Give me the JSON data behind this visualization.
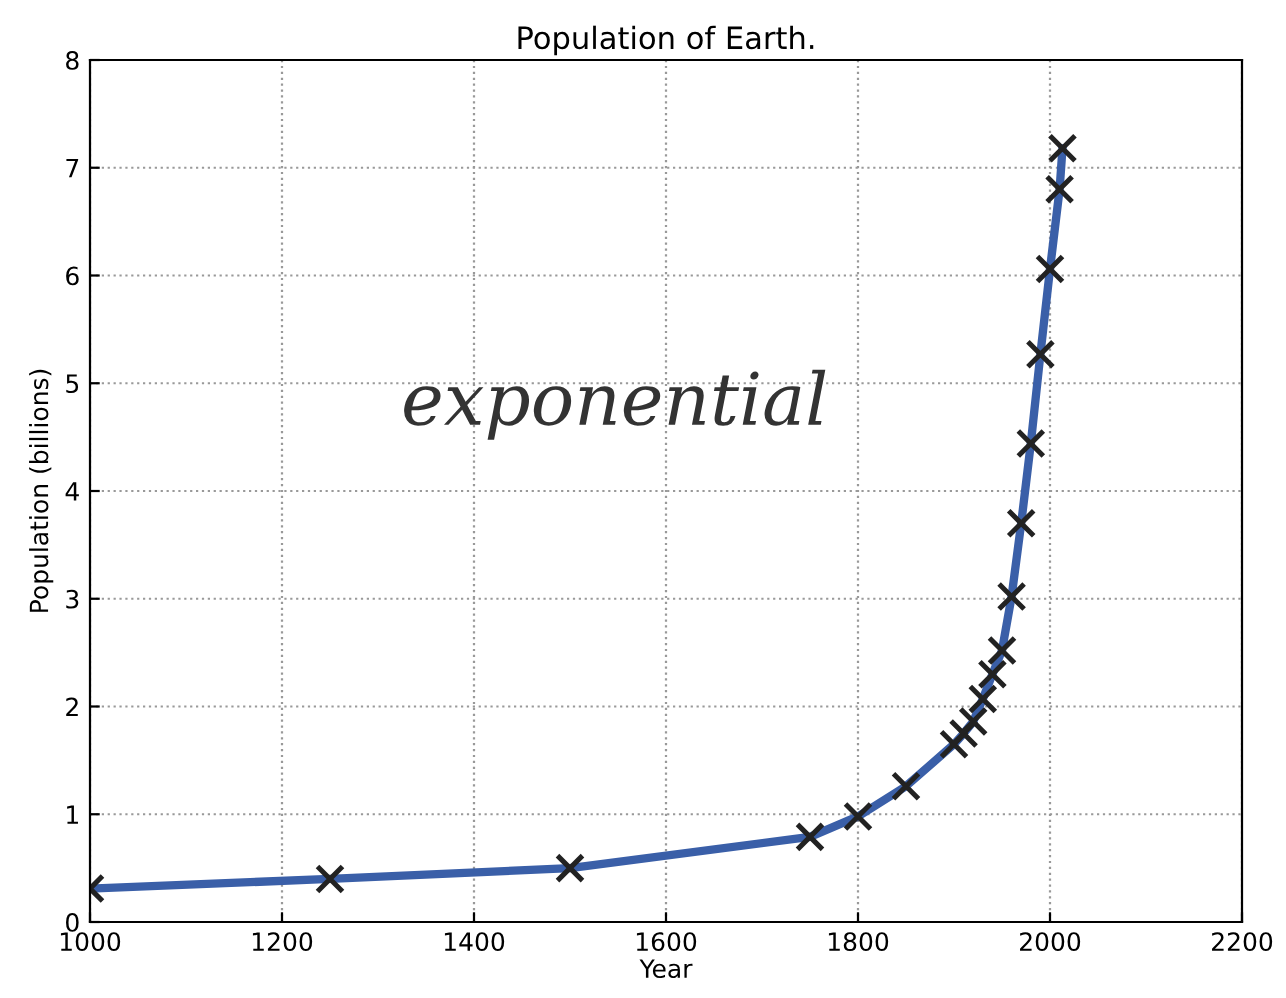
{
  "chart_data": {
    "type": "line",
    "title": "Population of Earth.",
    "xlabel": "Year",
    "ylabel": "Population (billions)",
    "x": [
      1000,
      1250,
      1500,
      1750,
      1800,
      1850,
      1900,
      1910,
      1920,
      1930,
      1940,
      1950,
      1960,
      1970,
      1980,
      1990,
      2000,
      2010,
      2013
    ],
    "series": [
      {
        "color": "#3a5fa8",
        "values": [
          0.31,
          0.4,
          0.5,
          0.79,
          0.98,
          1.26,
          1.65,
          1.75,
          1.86,
          2.07,
          2.3,
          2.52,
          3.02,
          3.7,
          4.44,
          5.27,
          6.06,
          6.8,
          7.18
        ]
      }
    ],
    "marker": "cross",
    "line_style": "solid",
    "grid": true,
    "xlim": [
      1000,
      2200
    ],
    "xticks": [
      1000,
      1200,
      1400,
      1600,
      1800,
      2000,
      2200
    ],
    "ylim": [
      0,
      8
    ],
    "yticks": [
      0,
      1,
      2,
      3,
      4,
      5,
      6,
      7,
      8
    ],
    "annotations": [
      "exponential"
    ]
  }
}
